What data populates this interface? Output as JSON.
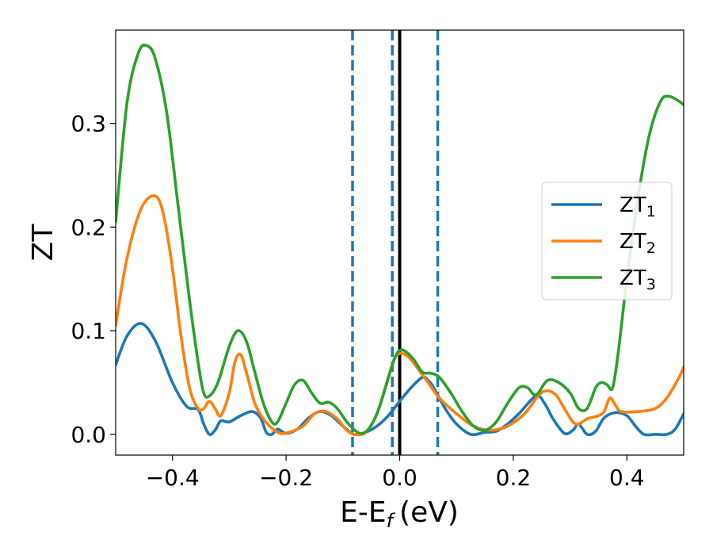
{
  "chart_data": {
    "type": "line",
    "title": "",
    "xlabel": "E-E",
    "xlabel_sub": "f",
    "xlabel_unit": "(eV)",
    "ylabel": "ZT",
    "xlim": [
      -0.5,
      0.5
    ],
    "ylim": [
      -0.02,
      0.39
    ],
    "x_ticks": [
      {
        "value": -0.4,
        "label": "−0.4"
      },
      {
        "value": -0.2,
        "label": "−0.2"
      },
      {
        "value": 0.0,
        "label": "0.0"
      },
      {
        "value": 0.2,
        "label": "0.2"
      },
      {
        "value": 0.4,
        "label": "0.4"
      }
    ],
    "y_ticks": [
      {
        "value": 0.0,
        "label": "0.0"
      },
      {
        "value": 0.1,
        "label": "0.1"
      },
      {
        "value": 0.2,
        "label": "0.2"
      },
      {
        "value": 0.3,
        "label": "0.3"
      }
    ],
    "grid": false,
    "legend_position": "center-right",
    "vertical_lines": [
      {
        "x": -0.083,
        "style": "dashed",
        "color": "#1f77b4"
      },
      {
        "x": -0.013,
        "style": "dashed",
        "color": "#1f77b4"
      },
      {
        "x": 0.067,
        "style": "dashed",
        "color": "#1f77b4"
      },
      {
        "x": 0.0,
        "style": "solid",
        "color": "#000000"
      }
    ],
    "series": [
      {
        "name": "ZT",
        "name_sub": "1",
        "color": "#1f77b4",
        "points": [
          [
            -0.5,
            0.067
          ],
          [
            -0.48,
            0.095
          ],
          [
            -0.455,
            0.107
          ],
          [
            -0.43,
            0.09
          ],
          [
            -0.4,
            0.05
          ],
          [
            -0.375,
            0.027
          ],
          [
            -0.355,
            0.024
          ],
          [
            -0.345,
            0.01
          ],
          [
            -0.335,
            0.0
          ],
          [
            -0.325,
            0.004
          ],
          [
            -0.315,
            0.013
          ],
          [
            -0.3,
            0.012
          ],
          [
            -0.28,
            0.018
          ],
          [
            -0.26,
            0.022
          ],
          [
            -0.245,
            0.016
          ],
          [
            -0.235,
            0.002
          ],
          [
            -0.225,
            0.0
          ],
          [
            -0.215,
            0.005
          ],
          [
            -0.2,
            0.001
          ],
          [
            -0.18,
            0.005
          ],
          [
            -0.16,
            0.016
          ],
          [
            -0.14,
            0.022
          ],
          [
            -0.12,
            0.018
          ],
          [
            -0.1,
            0.008
          ],
          [
            -0.08,
            0.0
          ],
          [
            -0.06,
            0.002
          ],
          [
            -0.04,
            0.008
          ],
          [
            -0.02,
            0.018
          ],
          [
            0.0,
            0.032
          ],
          [
            0.02,
            0.045
          ],
          [
            0.04,
            0.055
          ],
          [
            0.05,
            0.052
          ],
          [
            0.06,
            0.045
          ],
          [
            0.08,
            0.025
          ],
          [
            0.1,
            0.01
          ],
          [
            0.125,
            0.0
          ],
          [
            0.15,
            0.002
          ],
          [
            0.17,
            0.003
          ],
          [
            0.19,
            0.01
          ],
          [
            0.21,
            0.02
          ],
          [
            0.24,
            0.037
          ],
          [
            0.255,
            0.03
          ],
          [
            0.27,
            0.015
          ],
          [
            0.29,
            0.001
          ],
          [
            0.305,
            0.004
          ],
          [
            0.315,
            0.01
          ],
          [
            0.33,
            0.0
          ],
          [
            0.345,
            0.003
          ],
          [
            0.36,
            0.016
          ],
          [
            0.38,
            0.021
          ],
          [
            0.4,
            0.018
          ],
          [
            0.415,
            0.008
          ],
          [
            0.43,
            0.0
          ],
          [
            0.45,
            0.0
          ],
          [
            0.47,
            0.0
          ],
          [
            0.485,
            0.005
          ],
          [
            0.5,
            0.02
          ]
        ]
      },
      {
        "name": "ZT",
        "name_sub": "2",
        "color": "#ff7f0e",
        "points": [
          [
            -0.5,
            0.105
          ],
          [
            -0.48,
            0.17
          ],
          [
            -0.455,
            0.218
          ],
          [
            -0.43,
            0.23
          ],
          [
            -0.415,
            0.21
          ],
          [
            -0.4,
            0.16
          ],
          [
            -0.385,
            0.095
          ],
          [
            -0.37,
            0.045
          ],
          [
            -0.355,
            0.025
          ],
          [
            -0.345,
            0.025
          ],
          [
            -0.335,
            0.032
          ],
          [
            -0.325,
            0.025
          ],
          [
            -0.315,
            0.018
          ],
          [
            -0.3,
            0.04
          ],
          [
            -0.29,
            0.07
          ],
          [
            -0.28,
            0.077
          ],
          [
            -0.27,
            0.06
          ],
          [
            -0.255,
            0.03
          ],
          [
            -0.24,
            0.015
          ],
          [
            -0.225,
            0.006
          ],
          [
            -0.21,
            0.001
          ],
          [
            -0.195,
            0.002
          ],
          [
            -0.17,
            0.008
          ],
          [
            -0.15,
            0.02
          ],
          [
            -0.13,
            0.022
          ],
          [
            -0.11,
            0.015
          ],
          [
            -0.095,
            0.005
          ],
          [
            -0.08,
            0.0
          ],
          [
            -0.06,
            0.002
          ],
          [
            -0.04,
            0.02
          ],
          [
            -0.02,
            0.055
          ],
          [
            -0.01,
            0.072
          ],
          [
            0.0,
            0.078
          ],
          [
            0.015,
            0.075
          ],
          [
            0.03,
            0.065
          ],
          [
            0.05,
            0.05
          ],
          [
            0.07,
            0.035
          ],
          [
            0.1,
            0.02
          ],
          [
            0.13,
            0.008
          ],
          [
            0.16,
            0.004
          ],
          [
            0.19,
            0.008
          ],
          [
            0.22,
            0.02
          ],
          [
            0.245,
            0.038
          ],
          [
            0.26,
            0.042
          ],
          [
            0.275,
            0.038
          ],
          [
            0.29,
            0.025
          ],
          [
            0.305,
            0.012
          ],
          [
            0.315,
            0.01
          ],
          [
            0.33,
            0.015
          ],
          [
            0.35,
            0.018
          ],
          [
            0.36,
            0.022
          ],
          [
            0.37,
            0.035
          ],
          [
            0.38,
            0.028
          ],
          [
            0.39,
            0.022
          ],
          [
            0.42,
            0.022
          ],
          [
            0.45,
            0.025
          ],
          [
            0.47,
            0.035
          ],
          [
            0.49,
            0.053
          ],
          [
            0.5,
            0.065
          ]
        ]
      },
      {
        "name": "ZT",
        "name_sub": "3",
        "color": "#2ca02c",
        "points": [
          [
            -0.5,
            0.205
          ],
          [
            -0.48,
            0.32
          ],
          [
            -0.46,
            0.368
          ],
          [
            -0.445,
            0.375
          ],
          [
            -0.43,
            0.362
          ],
          [
            -0.41,
            0.31
          ],
          [
            -0.39,
            0.22
          ],
          [
            -0.37,
            0.13
          ],
          [
            -0.355,
            0.07
          ],
          [
            -0.345,
            0.04
          ],
          [
            -0.335,
            0.037
          ],
          [
            -0.32,
            0.05
          ],
          [
            -0.3,
            0.085
          ],
          [
            -0.285,
            0.1
          ],
          [
            -0.27,
            0.09
          ],
          [
            -0.255,
            0.06
          ],
          [
            -0.24,
            0.03
          ],
          [
            -0.225,
            0.012
          ],
          [
            -0.215,
            0.012
          ],
          [
            -0.2,
            0.03
          ],
          [
            -0.185,
            0.048
          ],
          [
            -0.17,
            0.052
          ],
          [
            -0.155,
            0.04
          ],
          [
            -0.14,
            0.03
          ],
          [
            -0.125,
            0.031
          ],
          [
            -0.11,
            0.025
          ],
          [
            -0.09,
            0.01
          ],
          [
            -0.07,
            0.001
          ],
          [
            -0.055,
            0.005
          ],
          [
            -0.04,
            0.02
          ],
          [
            -0.025,
            0.045
          ],
          [
            -0.01,
            0.072
          ],
          [
            0.0,
            0.081
          ],
          [
            0.01,
            0.08
          ],
          [
            0.025,
            0.072
          ],
          [
            0.04,
            0.06
          ],
          [
            0.055,
            0.059
          ],
          [
            0.07,
            0.055
          ],
          [
            0.09,
            0.04
          ],
          [
            0.11,
            0.022
          ],
          [
            0.13,
            0.008
          ],
          [
            0.15,
            0.004
          ],
          [
            0.17,
            0.012
          ],
          [
            0.19,
            0.03
          ],
          [
            0.21,
            0.045
          ],
          [
            0.225,
            0.045
          ],
          [
            0.24,
            0.038
          ],
          [
            0.26,
            0.052
          ],
          [
            0.28,
            0.05
          ],
          [
            0.3,
            0.04
          ],
          [
            0.315,
            0.025
          ],
          [
            0.33,
            0.025
          ],
          [
            0.345,
            0.045
          ],
          [
            0.355,
            0.05
          ],
          [
            0.365,
            0.048
          ],
          [
            0.375,
            0.045
          ],
          [
            0.385,
            0.08
          ],
          [
            0.4,
            0.15
          ],
          [
            0.42,
            0.23
          ],
          [
            0.44,
            0.29
          ],
          [
            0.46,
            0.322
          ],
          [
            0.475,
            0.326
          ],
          [
            0.49,
            0.322
          ],
          [
            0.5,
            0.318
          ]
        ]
      }
    ]
  }
}
